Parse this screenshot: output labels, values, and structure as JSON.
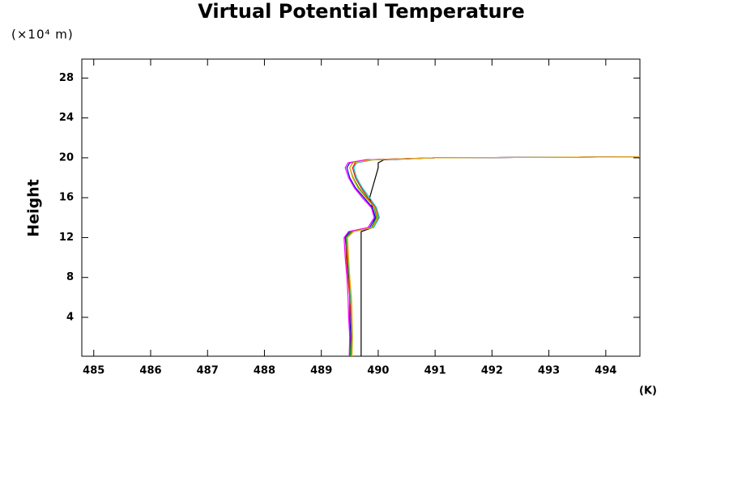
{
  "chart_data": {
    "type": "line",
    "title": "Virtual Potential Temperature",
    "y_unit": "(×10⁴ m)",
    "ylabel": "Height",
    "xlabel": "(K)",
    "xlim": [
      484.79,
      494.6
    ],
    "ylim": [
      0.1,
      29.9
    ],
    "xticks": [
      485,
      486,
      487,
      488,
      489,
      490,
      491,
      492,
      493,
      494
    ],
    "yticks": [
      4,
      8,
      12,
      16,
      20,
      24,
      28
    ],
    "y": [
      0.1,
      2,
      4,
      6,
      8,
      10,
      12,
      12.6,
      13,
      14,
      15,
      16,
      17,
      18,
      19,
      19.5,
      19.8,
      20,
      20.1
    ],
    "series": [
      {
        "color": "#000000",
        "values": [
          489.7,
          489.7,
          489.7,
          489.7,
          489.7,
          489.7,
          489.7,
          489.7,
          489.9,
          489.95,
          489.9,
          489.85,
          489.9,
          489.95,
          490,
          490,
          490.1,
          491,
          494.6
        ]
      },
      {
        "color": "#0000ff",
        "values": [
          489.5,
          489.52,
          489.5,
          489.5,
          489.48,
          489.45,
          489.42,
          489.5,
          489.85,
          489.95,
          489.9,
          489.75,
          489.6,
          489.5,
          489.45,
          489.5,
          489.8,
          491,
          494.6
        ]
      },
      {
        "color": "#ff0000",
        "values": [
          489.52,
          489.53,
          489.52,
          489.5,
          489.47,
          489.44,
          489.43,
          489.55,
          489.9,
          490.0,
          489.95,
          489.82,
          489.7,
          489.6,
          489.55,
          489.6,
          489.9,
          491,
          494.6
        ]
      },
      {
        "color": "#00aa00",
        "values": [
          489.51,
          489.5,
          489.49,
          489.5,
          489.49,
          489.46,
          489.44,
          489.52,
          489.88,
          489.97,
          489.93,
          489.8,
          489.66,
          489.56,
          489.5,
          489.55,
          489.85,
          491,
          494.6
        ]
      },
      {
        "color": "#ff00ff",
        "values": [
          489.49,
          489.5,
          489.48,
          489.47,
          489.45,
          489.42,
          489.4,
          489.48,
          489.82,
          489.93,
          489.88,
          489.72,
          489.58,
          489.48,
          489.42,
          489.47,
          489.78,
          491,
          494.6
        ]
      },
      {
        "color": "#00cccc",
        "values": [
          489.53,
          489.54,
          489.53,
          489.52,
          489.5,
          489.47,
          489.45,
          489.56,
          489.92,
          490.02,
          489.97,
          489.85,
          489.72,
          489.62,
          489.57,
          489.62,
          489.92,
          491,
          494.6
        ]
      },
      {
        "color": "#ffa500",
        "values": [
          489.54,
          489.55,
          489.54,
          489.53,
          489.5,
          489.48,
          489.46,
          489.57,
          489.9,
          489.99,
          489.94,
          489.78,
          489.64,
          489.55,
          489.5,
          489.56,
          489.88,
          491,
          494.6
        ]
      }
    ]
  }
}
